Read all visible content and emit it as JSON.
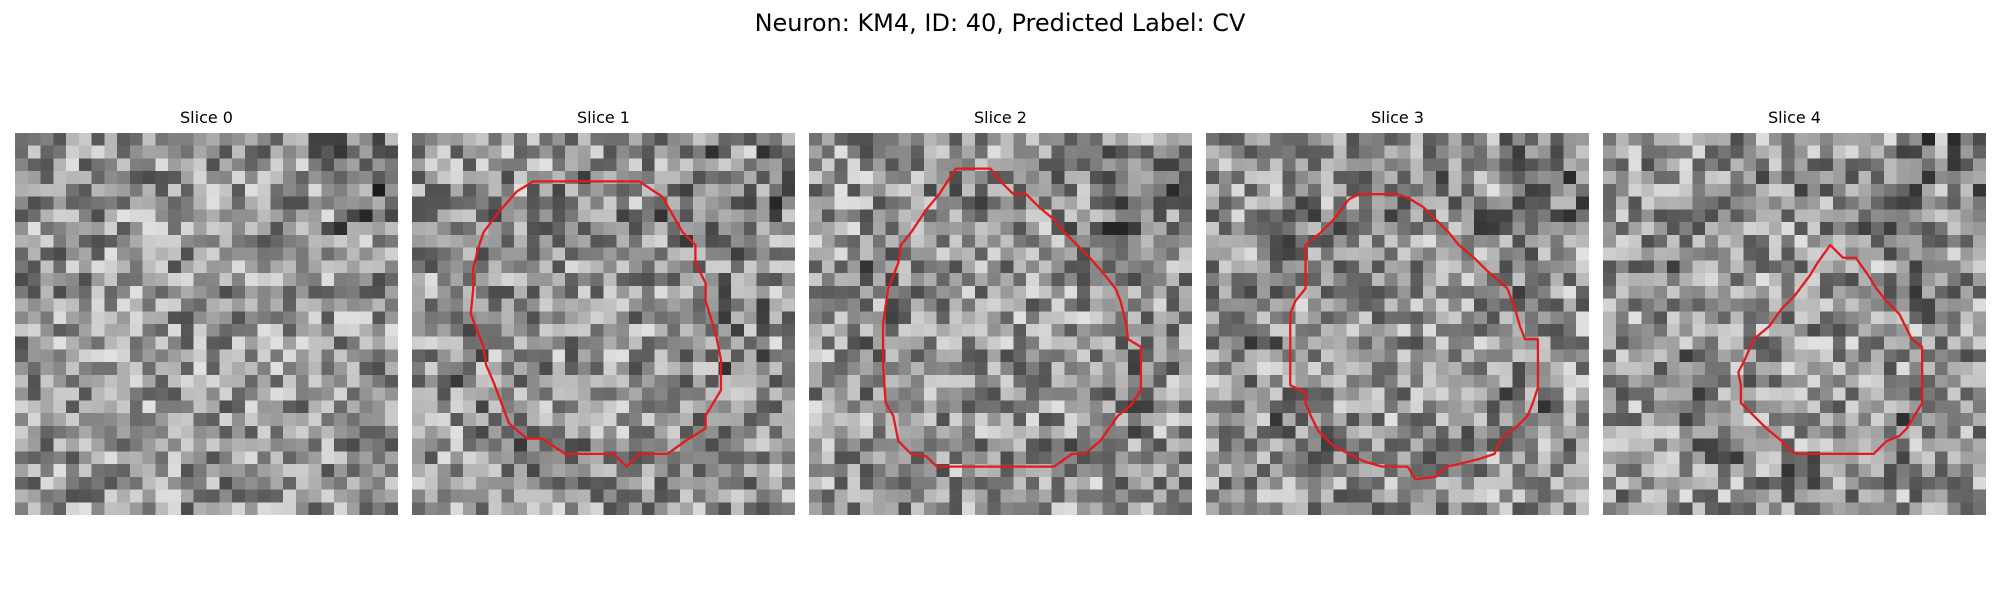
{
  "figure": {
    "title": "Neuron: KM4, ID: 40, Predicted Label: CV"
  },
  "image_settings": {
    "colormap": "gray",
    "grid": "30x30",
    "contour_color": "#e41a1c"
  },
  "slices": [
    {
      "label": "Slice 0",
      "seed": 11,
      "roi": null
    },
    {
      "label": "Slice 1",
      "seed": 23,
      "roi": [
        [
          9.5,
          3.8
        ],
        [
          17.8,
          3.8
        ],
        [
          19.6,
          5.0
        ],
        [
          21.2,
          7.8
        ],
        [
          22.2,
          8.8
        ],
        [
          22.2,
          10.2
        ],
        [
          23.0,
          11.8
        ],
        [
          23.0,
          13.2
        ],
        [
          23.8,
          15.8
        ],
        [
          24.2,
          17.8
        ],
        [
          24.2,
          20.2
        ],
        [
          23.6,
          21.2
        ],
        [
          23.0,
          22.2
        ],
        [
          23.0,
          23.2
        ],
        [
          21.4,
          24.2
        ],
        [
          20.0,
          25.2
        ],
        [
          19.2,
          25.2
        ],
        [
          17.8,
          25.2
        ],
        [
          16.8,
          26.2
        ],
        [
          15.8,
          25.2
        ],
        [
          12.0,
          25.2
        ],
        [
          10.2,
          24.0
        ],
        [
          9.0,
          24.0
        ],
        [
          7.6,
          22.8
        ],
        [
          7.0,
          21.2
        ],
        [
          6.4,
          19.6
        ],
        [
          5.8,
          18.2
        ],
        [
          5.6,
          16.8
        ],
        [
          4.6,
          14.2
        ],
        [
          4.8,
          12.2
        ],
        [
          4.8,
          10.6
        ],
        [
          5.2,
          9.0
        ],
        [
          5.6,
          7.8
        ],
        [
          6.8,
          6.2
        ],
        [
          8.2,
          4.6
        ]
      ]
    },
    {
      "label": "Slice 2",
      "seed": 37,
      "roi": [
        [
          11.5,
          2.8
        ],
        [
          14.2,
          2.8
        ],
        [
          15.0,
          3.8
        ],
        [
          16.0,
          4.8
        ],
        [
          17.0,
          4.8
        ],
        [
          18.0,
          5.8
        ],
        [
          19.2,
          6.8
        ],
        [
          20.0,
          7.8
        ],
        [
          21.0,
          8.8
        ],
        [
          22.0,
          9.8
        ],
        [
          23.2,
          11.2
        ],
        [
          24.0,
          12.2
        ],
        [
          24.4,
          13.2
        ],
        [
          24.8,
          14.8
        ],
        [
          25.0,
          16.2
        ],
        [
          26.0,
          16.8
        ],
        [
          26.0,
          20.2
        ],
        [
          25.2,
          21.4
        ],
        [
          24.2,
          22.2
        ],
        [
          22.8,
          24.2
        ],
        [
          21.6,
          25.2
        ],
        [
          20.6,
          25.2
        ],
        [
          19.2,
          26.2
        ],
        [
          10.0,
          26.2
        ],
        [
          9.2,
          25.4
        ],
        [
          8.0,
          25.2
        ],
        [
          7.0,
          24.2
        ],
        [
          6.6,
          22.2
        ],
        [
          6.0,
          21.2
        ],
        [
          5.8,
          18.2
        ],
        [
          5.8,
          15.0
        ],
        [
          6.2,
          12.2
        ],
        [
          7.0,
          10.2
        ],
        [
          7.2,
          8.8
        ],
        [
          8.0,
          7.8
        ],
        [
          9.2,
          6.0
        ],
        [
          10.2,
          4.8
        ]
      ]
    },
    {
      "label": "Slice 3",
      "seed": 53,
      "roi": [
        [
          11.2,
          5.2
        ],
        [
          12.0,
          4.8
        ],
        [
          14.2,
          4.8
        ],
        [
          15.0,
          4.8
        ],
        [
          16.0,
          5.2
        ],
        [
          17.0,
          5.8
        ],
        [
          18.0,
          6.8
        ],
        [
          19.0,
          7.8
        ],
        [
          19.8,
          8.8
        ],
        [
          21.0,
          9.8
        ],
        [
          22.0,
          10.8
        ],
        [
          23.6,
          12.2
        ],
        [
          24.2,
          13.8
        ],
        [
          24.6,
          15.2
        ],
        [
          25.0,
          16.2
        ],
        [
          26.0,
          16.2
        ],
        [
          26.0,
          20.0
        ],
        [
          25.6,
          21.2
        ],
        [
          25.2,
          22.2
        ],
        [
          24.2,
          23.2
        ],
        [
          23.0,
          24.2
        ],
        [
          22.6,
          25.2
        ],
        [
          21.4,
          25.6
        ],
        [
          19.8,
          26.0
        ],
        [
          18.8,
          26.2
        ],
        [
          18.0,
          27.0
        ],
        [
          16.4,
          27.2
        ],
        [
          15.8,
          26.2
        ],
        [
          13.8,
          26.2
        ],
        [
          12.4,
          25.8
        ],
        [
          11.2,
          25.2
        ],
        [
          10.0,
          24.6
        ],
        [
          8.8,
          23.4
        ],
        [
          8.2,
          22.2
        ],
        [
          7.8,
          21.2
        ],
        [
          7.8,
          20.4
        ],
        [
          6.6,
          19.8
        ],
        [
          6.6,
          14.2
        ],
        [
          7.0,
          13.2
        ],
        [
          7.8,
          12.2
        ],
        [
          7.8,
          8.8
        ],
        [
          9.0,
          7.8
        ],
        [
          10.0,
          6.8
        ]
      ]
    },
    {
      "label": "Slice 4",
      "seed": 71,
      "roi": [
        [
          17.8,
          8.8
        ],
        [
          18.8,
          9.8
        ],
        [
          19.8,
          9.8
        ],
        [
          20.8,
          11.2
        ],
        [
          21.4,
          12.2
        ],
        [
          22.2,
          13.2
        ],
        [
          23.2,
          14.2
        ],
        [
          24.2,
          16.2
        ],
        [
          25.0,
          16.8
        ],
        [
          25.0,
          21.2
        ],
        [
          24.4,
          22.2
        ],
        [
          23.8,
          23.2
        ],
        [
          23.2,
          23.8
        ],
        [
          22.2,
          24.2
        ],
        [
          21.2,
          25.2
        ],
        [
          17.8,
          25.2
        ],
        [
          15.2,
          25.2
        ],
        [
          14.8,
          25.0
        ],
        [
          14.0,
          24.2
        ],
        [
          12.8,
          23.2
        ],
        [
          11.8,
          22.2
        ],
        [
          10.8,
          21.2
        ],
        [
          10.8,
          19.8
        ],
        [
          10.6,
          18.8
        ],
        [
          11.2,
          17.6
        ],
        [
          11.8,
          16.2
        ],
        [
          13.0,
          15.2
        ],
        [
          14.0,
          13.8
        ],
        [
          15.0,
          12.8
        ],
        [
          16.2,
          11.2
        ],
        [
          16.8,
          10.2
        ]
      ]
    }
  ]
}
